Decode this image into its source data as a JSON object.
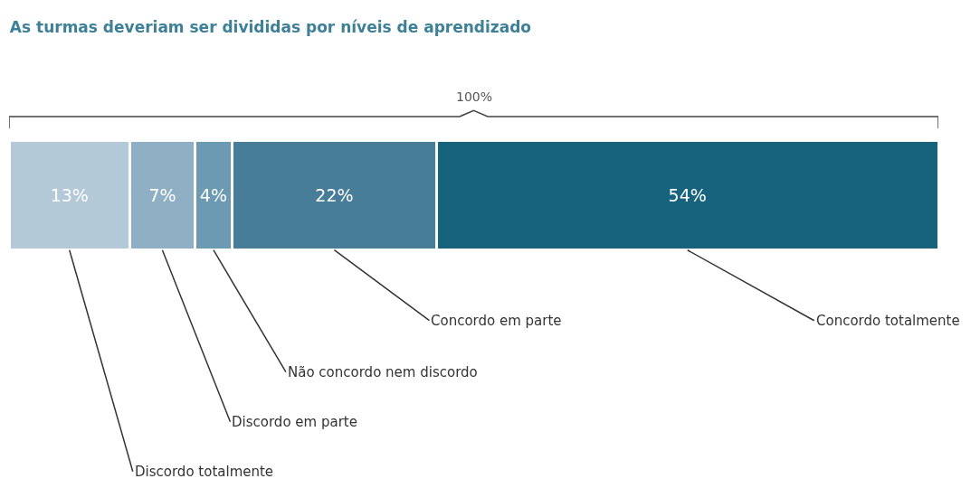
{
  "chart_data": {
    "type": "bar",
    "orientation": "horizontal",
    "stacked": true,
    "title": "As turmas deveriam ser divididas por níveis de aprendizado",
    "categories": [
      null
    ],
    "legend": false,
    "series": [
      {
        "name": "Discordo totalmente",
        "color": "#b3c9d7",
        "values": [
          13
        ],
        "value_labels": [
          "13%"
        ]
      },
      {
        "name": "Discordo em parte",
        "color": "#8fb0c4",
        "values": [
          7
        ],
        "value_labels": [
          "7%"
        ]
      },
      {
        "name": "Não concordo nem discordo",
        "color": "#6b9ab2",
        "values": [
          4
        ],
        "value_labels": [
          "4%"
        ]
      },
      {
        "name": "Concordo em parte",
        "color": "#477d99",
        "values": [
          22
        ],
        "value_labels": [
          "22%"
        ]
      },
      {
        "name": "Concordo totalmente",
        "color": "#17627d",
        "values": [
          54
        ],
        "value_labels": [
          "54%"
        ]
      }
    ],
    "annotations": [
      "100%"
    ]
  }
}
